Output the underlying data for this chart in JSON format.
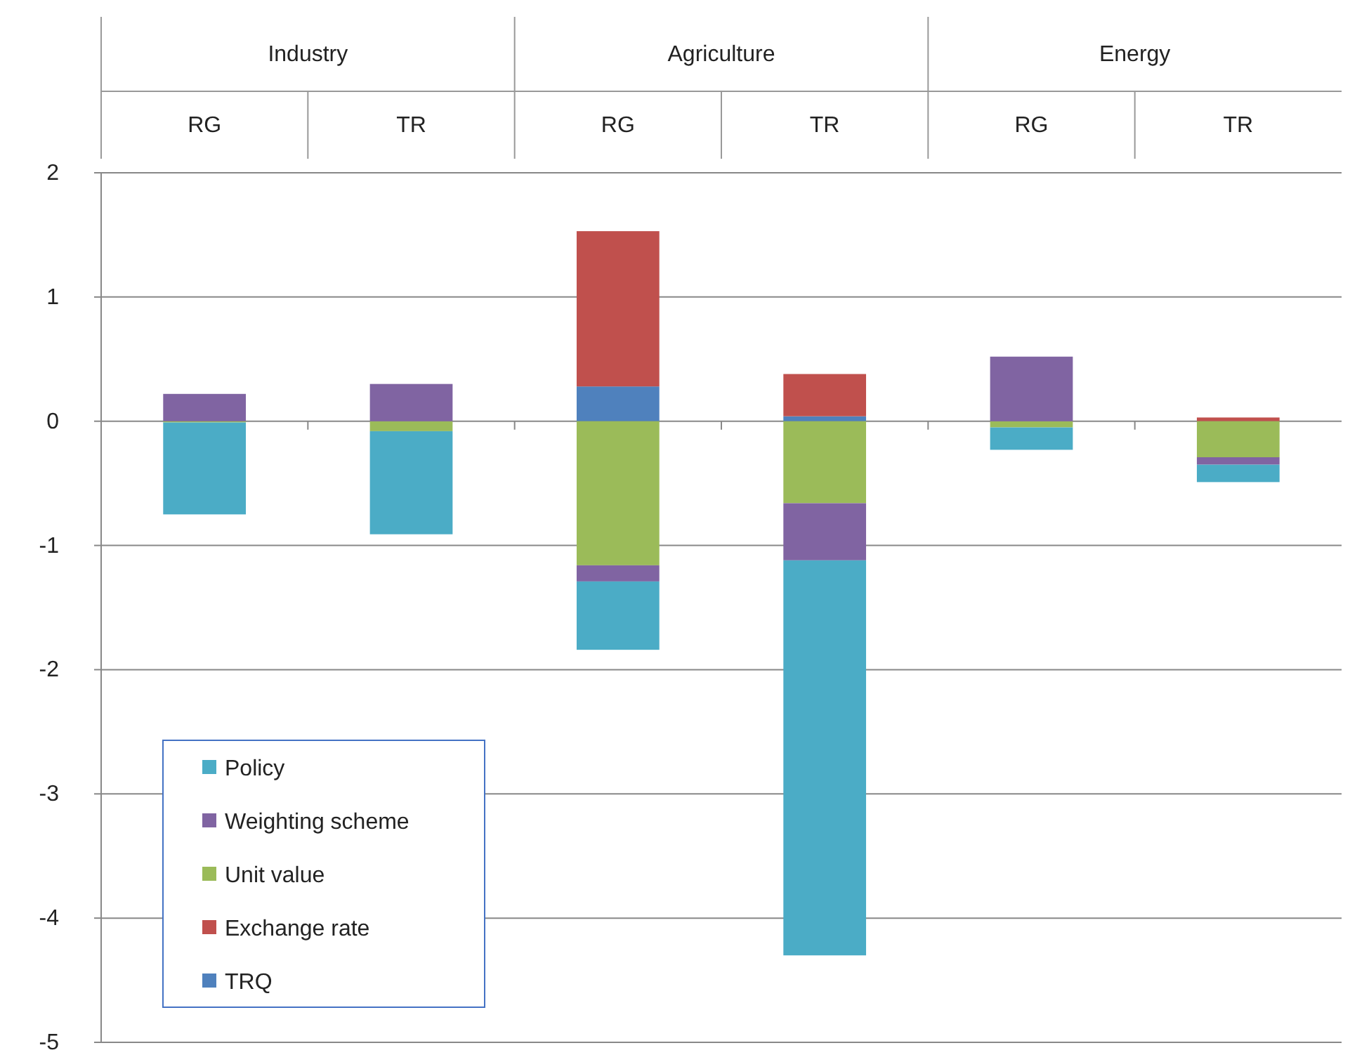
{
  "chart_data": {
    "type": "bar",
    "stacked": true,
    "categories": [
      "RG",
      "TR",
      "RG",
      "TR",
      "RG",
      "TR"
    ],
    "annotations": [
      "Industry",
      "Agriculture",
      "Energy"
    ],
    "series": [
      {
        "name": "TRQ",
        "color": "#4f81bd",
        "values": [
          0,
          0,
          0.28,
          0.04,
          0,
          0
        ]
      },
      {
        "name": "Exchange rate",
        "color": "#c0504d",
        "values": [
          0,
          0,
          1.25,
          0.34,
          0,
          0.03
        ]
      },
      {
        "name": "Unit value",
        "color": "#9bbb59",
        "values": [
          -0.01,
          -0.08,
          -1.16,
          -0.66,
          -0.05,
          -0.29
        ]
      },
      {
        "name": "Weighting scheme",
        "color": "#8064a2",
        "values": [
          0.22,
          0.3,
          -0.13,
          -0.46,
          0.52,
          -0.06
        ]
      },
      {
        "name": "Policy",
        "color": "#4bacc6",
        "values": [
          -0.74,
          -0.83,
          -0.55,
          -3.18,
          -0.18,
          -0.14
        ]
      }
    ],
    "ylim": [
      -5,
      2
    ],
    "yticks": [
      -5,
      -4,
      -3,
      -2,
      -1,
      0,
      1,
      2
    ],
    "grid": "y",
    "legend": "bottom left"
  }
}
